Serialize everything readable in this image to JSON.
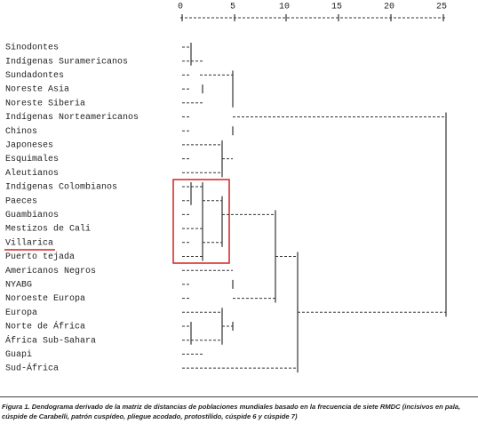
{
  "axis": {
    "ticks": [
      "0",
      "5",
      "10",
      "15",
      "20",
      "25"
    ]
  },
  "labels": [
    "Sinodontes",
    "Indígenas Suramericanos",
    "Sundadontes",
    "Noreste Asia",
    "Noreste Siberia",
    "Indígenas Norteamericanos",
    "Chinos",
    "Japoneses",
    "Esquimales",
    "Aleutianos",
    "Indígenas Colombianos",
    "Paeces",
    "Guambianos",
    "Mestizos de Cali",
    "Villarica",
    "Puerto tejada",
    "Americanos Negros",
    "NYABG",
    "Noroeste Europa",
    "Europa",
    "Norte de África",
    "África Sub-Sahara",
    "Guapi",
    "Sud-África"
  ],
  "caption": {
    "label": "Figura 1.",
    "text": "Dendograma derivado de la matriz de distancias de poblaciones mundiales basado en la frecuencia de siete RMDC (incisivos en pala, cúspide de Carabelli, patrón cuspídeo, pliegue acodado, protostílido, cúspide 6 y cúspide 7)"
  }
}
